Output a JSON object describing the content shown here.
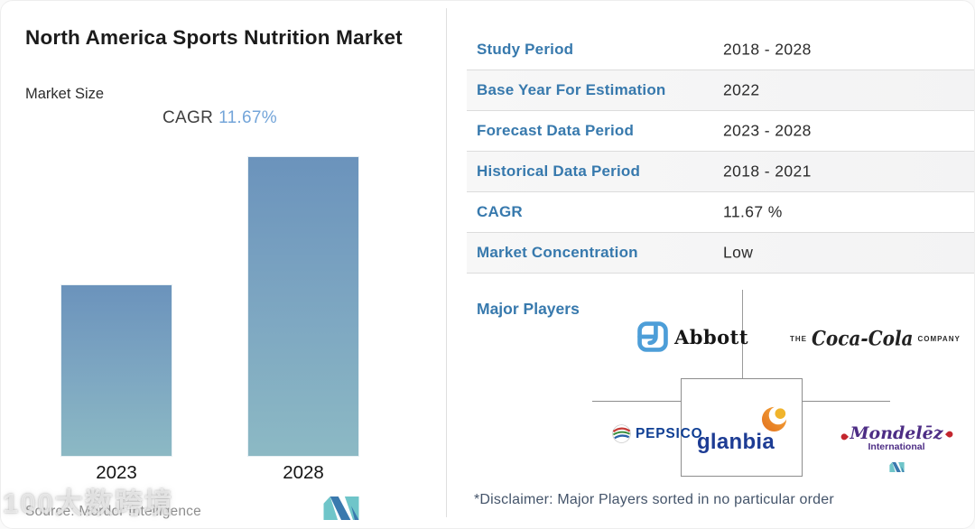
{
  "left_panel": {
    "title": "North America Sports Nutrition Market",
    "subtitle": "Market Size",
    "cagr_label": "CAGR",
    "cagr_value": "11.67%",
    "source": "Source:  Mordor Intelligence",
    "watermark": "100大数跨境"
  },
  "chart_data": {
    "type": "bar",
    "title": "North America Sports Nutrition Market - Market Size",
    "categories": [
      "2023",
      "2028"
    ],
    "values_pct_of_max": [
      57.4,
      100
    ],
    "cagr_pct": 11.67,
    "ylabel": "",
    "xlabel": "",
    "grid": false,
    "note": "no numeric y-axis shown; bar heights are relative, 2028 = 2023 compounded at 11.67% CAGR",
    "bar_gradient_top": "#6b93bc",
    "bar_gradient_bottom": "#8cb9c4"
  },
  "table": {
    "rows": [
      {
        "label": "Study Period",
        "value": "2018 - 2028"
      },
      {
        "label": "Base Year For Estimation",
        "value": "2022"
      },
      {
        "label": "Forecast Data Period",
        "value": "2023 - 2028"
      },
      {
        "label": "Historical Data Period",
        "value": "2018 - 2021"
      },
      {
        "label": "CAGR",
        "value": "11.67 %"
      },
      {
        "label": "Market Concentration",
        "value": "Low"
      }
    ]
  },
  "major_players": {
    "label": "Major Players",
    "abbott": "Abbott",
    "coca_cola_pre": "THE",
    "coca_cola_script": "Coca-Cola",
    "coca_cola_post": "COMPANY",
    "pepsico": "PEPSICO",
    "glanbia": "glanbia",
    "mondelez": "Mondelēz",
    "mondelez_sub": "International",
    "disclaimer": "*Disclaimer: Major Players sorted in no particular order"
  },
  "colors": {
    "label_blue": "#3779ad",
    "cagr_value_blue": "#74a5d9",
    "row_alt_gray": "#f4f4f5",
    "divider_gray": "#dcdcdc",
    "mordor_teal": "#6fc5c9",
    "mordor_blue": "#3a79ae"
  },
  "icons": {
    "mordor_logo": "mordor-intelligence-m-logo",
    "abbott_mark": "abbott-a-symbol",
    "pepsi_globe": "pepsico-globe",
    "glanbia_crescent": "glanbia-orange-crescent"
  }
}
